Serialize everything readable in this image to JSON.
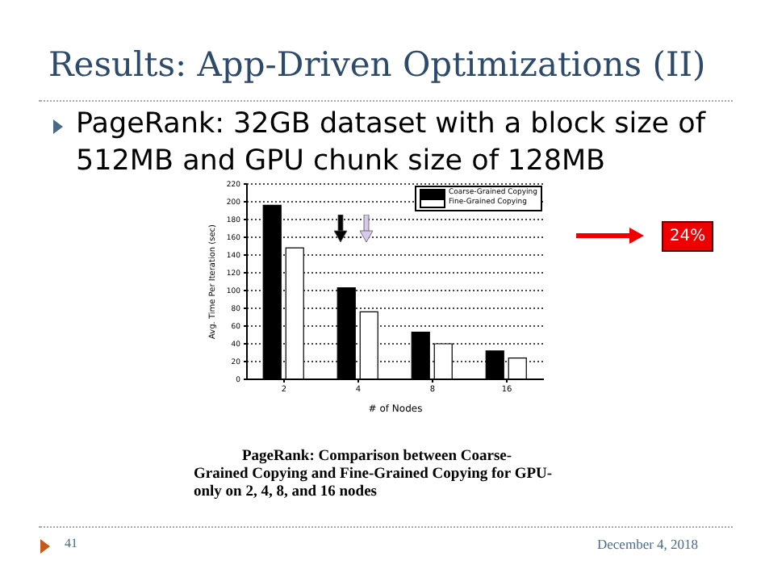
{
  "chart_data": {
    "type": "bar",
    "title": "Results: App-Driven Optimizations (II)",
    "subtitle": "PageRank: 32GB dataset with a block size of 512MB and GPU chunk size of 128MB",
    "xlabel": "# of Nodes",
    "ylabel": "Avg. Time Per Iteration (sec)",
    "categories": [
      "2",
      "4",
      "8",
      "16"
    ],
    "series": [
      {
        "name": "Coarse-Grained Copying",
        "color": "#000000",
        "values": [
          196,
          103,
          53,
          32
        ]
      },
      {
        "name": "Fine-Grained Copying",
        "color": "#ffffff",
        "values": [
          148,
          76,
          40,
          24
        ]
      }
    ],
    "ylim": [
      0,
      220
    ],
    "yticks": [
      0,
      20,
      40,
      60,
      80,
      100,
      120,
      140,
      160,
      180,
      200,
      220
    ],
    "grid": "y",
    "legend": "top right",
    "annotations": [
      "24%",
      "PageRank: Comparison between Coarse-Grained Copying and Fine-Grained Copying for GPU-only on 2, 4, 8, and 16 nodes",
      "41",
      "December 4, 2018"
    ]
  }
}
